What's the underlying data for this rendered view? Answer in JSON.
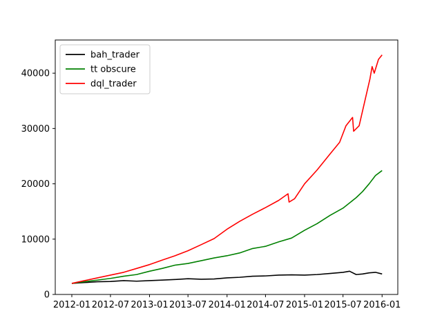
{
  "chart_data": {
    "type": "line",
    "title": "",
    "xlabel": "",
    "ylabel": "",
    "xlim": [
      "2011-10-15",
      "2016-03-15"
    ],
    "ylim": [
      0,
      46000
    ],
    "x_ticks": [
      "2012-01",
      "2012-07",
      "2013-01",
      "2013-07",
      "2014-01",
      "2014-07",
      "2015-01",
      "2015-07",
      "2016-01"
    ],
    "y_ticks": [
      0,
      10000,
      20000,
      30000,
      40000
    ],
    "y_tick_labels": [
      "0",
      "10000",
      "20000",
      "30000",
      "40000"
    ],
    "grid": false,
    "legend_position": "top-left",
    "series": [
      {
        "name": "bah_trader",
        "color": "#000000",
        "points": [
          [
            "2012-01-01",
            2000
          ],
          [
            "2012-03-01",
            2150
          ],
          [
            "2012-05-01",
            2300
          ],
          [
            "2012-07-01",
            2350
          ],
          [
            "2012-09-01",
            2500
          ],
          [
            "2012-11-01",
            2400
          ],
          [
            "2013-01-01",
            2500
          ],
          [
            "2013-03-01",
            2600
          ],
          [
            "2013-05-01",
            2700
          ],
          [
            "2013-07-01",
            2850
          ],
          [
            "2013-09-01",
            2750
          ],
          [
            "2013-11-01",
            2800
          ],
          [
            "2014-01-01",
            3000
          ],
          [
            "2014-03-01",
            3100
          ],
          [
            "2014-05-01",
            3300
          ],
          [
            "2014-07-01",
            3350
          ],
          [
            "2014-09-01",
            3500
          ],
          [
            "2014-11-01",
            3550
          ],
          [
            "2015-01-01",
            3500
          ],
          [
            "2015-03-01",
            3600
          ],
          [
            "2015-05-01",
            3800
          ],
          [
            "2015-07-01",
            4000
          ],
          [
            "2015-08-01",
            4200
          ],
          [
            "2015-09-01",
            3600
          ],
          [
            "2015-10-01",
            3700
          ],
          [
            "2015-11-01",
            3900
          ],
          [
            "2015-12-01",
            4000
          ],
          [
            "2016-01-01",
            3700
          ]
        ]
      },
      {
        "name": "tt obscure",
        "color": "#008000",
        "points": [
          [
            "2012-01-01",
            2000
          ],
          [
            "2012-03-01",
            2300
          ],
          [
            "2012-05-01",
            2600
          ],
          [
            "2012-07-01",
            2900
          ],
          [
            "2012-09-01",
            3300
          ],
          [
            "2012-11-01",
            3600
          ],
          [
            "2013-01-01",
            4200
          ],
          [
            "2013-03-01",
            4700
          ],
          [
            "2013-05-01",
            5300
          ],
          [
            "2013-07-01",
            5600
          ],
          [
            "2013-09-01",
            6100
          ],
          [
            "2013-11-01",
            6600
          ],
          [
            "2014-01-01",
            7000
          ],
          [
            "2014-03-01",
            7500
          ],
          [
            "2014-05-01",
            8300
          ],
          [
            "2014-07-01",
            8700
          ],
          [
            "2014-09-01",
            9500
          ],
          [
            "2014-11-01",
            10200
          ],
          [
            "2015-01-01",
            11600
          ],
          [
            "2015-03-01",
            12800
          ],
          [
            "2015-05-01",
            14300
          ],
          [
            "2015-07-01",
            15600
          ],
          [
            "2015-09-01",
            17500
          ],
          [
            "2015-10-01",
            18600
          ],
          [
            "2015-11-01",
            20000
          ],
          [
            "2015-12-01",
            21500
          ],
          [
            "2016-01-01",
            22400
          ]
        ]
      },
      {
        "name": "dql_trader",
        "color": "#ff0000",
        "points": [
          [
            "2012-01-01",
            2000
          ],
          [
            "2012-03-01",
            2500
          ],
          [
            "2012-05-01",
            3000
          ],
          [
            "2012-07-01",
            3500
          ],
          [
            "2012-09-01",
            4000
          ],
          [
            "2012-11-01",
            4700
          ],
          [
            "2013-01-01",
            5400
          ],
          [
            "2013-03-01",
            6200
          ],
          [
            "2013-05-01",
            7000
          ],
          [
            "2013-07-01",
            7900
          ],
          [
            "2013-09-01",
            9000
          ],
          [
            "2013-11-01",
            10100
          ],
          [
            "2014-01-01",
            11800
          ],
          [
            "2014-03-01",
            13200
          ],
          [
            "2014-05-01",
            14500
          ],
          [
            "2014-07-01",
            15700
          ],
          [
            "2014-09-01",
            17000
          ],
          [
            "2014-10-15",
            18200
          ],
          [
            "2014-10-20",
            16700
          ],
          [
            "2014-11-15",
            17300
          ],
          [
            "2015-01-01",
            20000
          ],
          [
            "2015-03-01",
            22500
          ],
          [
            "2015-05-01",
            25400
          ],
          [
            "2015-06-15",
            27500
          ],
          [
            "2015-07-15",
            30500
          ],
          [
            "2015-08-15",
            32000
          ],
          [
            "2015-08-20",
            29500
          ],
          [
            "2015-09-15",
            30500
          ],
          [
            "2015-10-15",
            35500
          ],
          [
            "2015-11-05",
            39000
          ],
          [
            "2015-11-15",
            41200
          ],
          [
            "2015-11-25",
            40000
          ],
          [
            "2015-12-15",
            42500
          ],
          [
            "2016-01-01",
            43300
          ]
        ]
      }
    ]
  }
}
